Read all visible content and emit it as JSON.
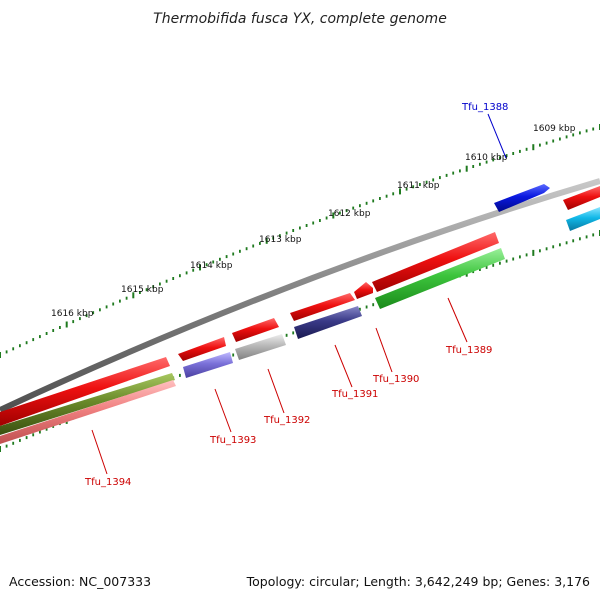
{
  "title": "Thermobifida fusca YX, complete genome",
  "footer": {
    "accession": "Accession: NC_007333",
    "stats": "Topology: circular; Length: 3,642,249 bp; Genes: 3,176"
  },
  "kbp_labels": [
    "1609 kbp",
    "1610 kbp",
    "1611 kbp",
    "1612 kbp",
    "1613 kbp",
    "1614 kbp",
    "1615 kbp",
    "1616 kbp"
  ],
  "genes": [
    {
      "name": "Tfu_1388",
      "color": "#0000cc"
    },
    {
      "name": "Tfu_1389",
      "color": "#cc0000"
    },
    {
      "name": "Tfu_1390",
      "color": "#cc0000"
    },
    {
      "name": "Tfu_1391",
      "color": "#cc0000"
    },
    {
      "name": "Tfu_1392",
      "color": "#cc0000"
    },
    {
      "name": "Tfu_1393",
      "color": "#cc0000"
    },
    {
      "name": "Tfu_1394",
      "color": "#cc0000"
    }
  ],
  "colors": {
    "backbone": "#808080",
    "tick": "#1f7a1f",
    "forward_cds": "#e81010",
    "blue_feature": "#0a18e0",
    "cyan_feature": "#10b8e8",
    "green_feature": "#3cc43c",
    "navy_feature": "#3a3a88",
    "violet_feature": "#7a70d8",
    "grey_feature": "#b8b8b8",
    "olive_feature": "#6a8a2a",
    "pink_feature": "#f08080"
  }
}
